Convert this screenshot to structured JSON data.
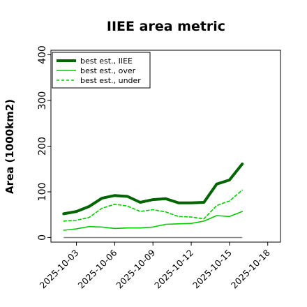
{
  "chart_data": {
    "type": "line",
    "title": "IIEE area metric",
    "xlabel": "",
    "ylabel": "Area (1000km2)",
    "ylim": [
      -10,
      410
    ],
    "xlim": [
      "2025-10-01",
      "2025-10-19"
    ],
    "yticks": [
      0,
      100,
      200,
      300,
      400
    ],
    "xticks": [
      "2025-10-03",
      "2025-10-06",
      "2025-10-09",
      "2025-10-12",
      "2025-10-15",
      "2025-10-18"
    ],
    "grid": false,
    "legend_position": "top-left",
    "x": [
      "2025-10-02",
      "2025-10-03",
      "2025-10-04",
      "2025-10-05",
      "2025-10-06",
      "2025-10-07",
      "2025-10-08",
      "2025-10-09",
      "2025-10-10",
      "2025-10-11",
      "2025-10-12",
      "2025-10-13",
      "2025-10-14",
      "2025-10-15",
      "2025-10-16"
    ],
    "baseline": 0,
    "series": [
      {
        "name": "best est., IIEE",
        "style": "solid-thick",
        "color": "#006400",
        "values": [
          52,
          57,
          68,
          86,
          92,
          90,
          77,
          83,
          85,
          76,
          76,
          77,
          117,
          126,
          161
        ]
      },
      {
        "name": "best est., over",
        "style": "solid",
        "color": "#00cc00",
        "values": [
          16,
          19,
          24,
          23,
          20,
          21,
          21,
          23,
          29,
          30,
          31,
          36,
          48,
          46,
          57
        ]
      },
      {
        "name": "best est., under",
        "style": "dashed",
        "color": "#00cc00",
        "values": [
          36,
          38,
          44,
          64,
          73,
          69,
          57,
          61,
          56,
          46,
          45,
          41,
          70,
          80,
          104
        ]
      }
    ]
  }
}
